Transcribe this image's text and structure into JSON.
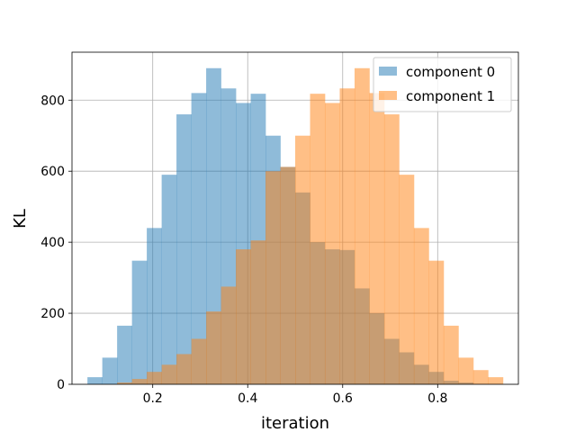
{
  "chart_data": {
    "type": "bar",
    "subtype": "histogram-overlay",
    "title": "",
    "xlabel": "iteration",
    "ylabel": "KL",
    "xlim": [
      0.03,
      0.97
    ],
    "ylim": [
      0,
      935
    ],
    "xticks": [
      "0.2",
      "0.4",
      "0.6",
      "0.8"
    ],
    "xtick_values": [
      0.2,
      0.4,
      0.6,
      0.8
    ],
    "yticks": [
      "0",
      "200",
      "400",
      "600",
      "800"
    ],
    "ytick_values": [
      0,
      200,
      400,
      600,
      800
    ],
    "grid": true,
    "legend": "top-right",
    "bin_width": 0.0313,
    "series": [
      {
        "name": "component 0",
        "color": "#1f77b4",
        "alpha": 0.5,
        "bin_starts": [
          0.0625,
          0.0938,
          0.125,
          0.1563,
          0.1875,
          0.2188,
          0.25,
          0.2813,
          0.3125,
          0.3438,
          0.375,
          0.4063,
          0.4375,
          0.4688,
          0.5,
          0.5313,
          0.5625,
          0.5938,
          0.625,
          0.6563,
          0.6875,
          0.7188,
          0.75,
          0.7813,
          0.8125,
          0.8438
        ],
        "values": [
          20,
          75,
          165,
          348,
          440,
          590,
          760,
          820,
          890,
          833,
          792,
          818,
          700,
          612,
          540,
          400,
          380,
          378,
          270,
          200,
          128,
          90,
          55,
          35,
          10,
          5
        ]
      },
      {
        "name": "component 1",
        "color": "#ff7f0e",
        "alpha": 0.5,
        "bin_starts": [
          0.125,
          0.1563,
          0.1875,
          0.2188,
          0.25,
          0.2813,
          0.3125,
          0.3438,
          0.375,
          0.4063,
          0.4375,
          0.4688,
          0.5,
          0.5313,
          0.5625,
          0.5938,
          0.625,
          0.6563,
          0.6875,
          0.7188,
          0.75,
          0.7813,
          0.8125,
          0.8438,
          0.875,
          0.9063
        ],
        "values": [
          5,
          15,
          35,
          55,
          85,
          128,
          205,
          275,
          380,
          405,
          600,
          612,
          700,
          818,
          792,
          833,
          890,
          820,
          760,
          590,
          440,
          348,
          165,
          75,
          40,
          20
        ]
      }
    ]
  }
}
